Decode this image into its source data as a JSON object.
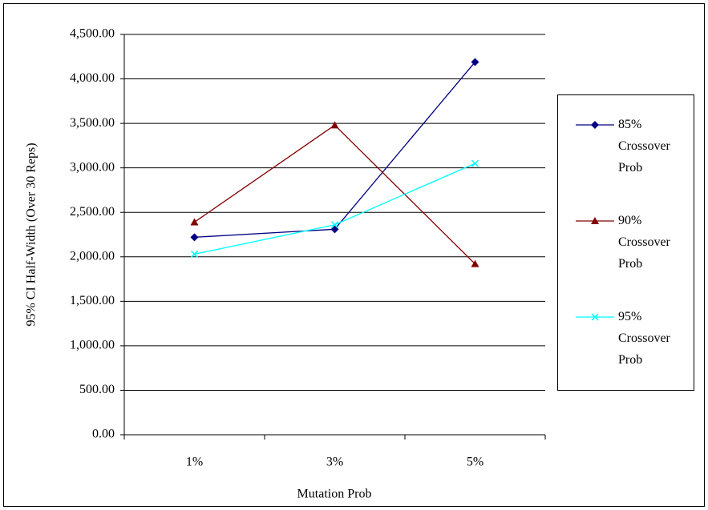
{
  "chart_data": {
    "type": "line",
    "x_label": "Mutation Prob",
    "y_label": "95% CI Half-Width (Over 30 Reps)",
    "categories": [
      "1%",
      "3%",
      "5%"
    ],
    "series": [
      {
        "name": "85% Crossover Prob",
        "color": "#000080",
        "marker": "diamond",
        "values": [
          2220,
          2310,
          4190
        ]
      },
      {
        "name": "90% Crossover Prob",
        "color": "#800000",
        "marker": "triangle",
        "values": [
          2390,
          3480,
          1920
        ]
      },
      {
        "name": "95% Crossover Prob",
        "color": "#00ffff",
        "marker": "x",
        "values": [
          2030,
          2360,
          3050
        ]
      }
    ],
    "ylim": [
      0,
      4500
    ],
    "yticks": [
      {
        "value": 0,
        "label": "0.00"
      },
      {
        "value": 500,
        "label": "500.00"
      },
      {
        "value": 1000,
        "label": "1,000.00"
      },
      {
        "value": 1500,
        "label": "1,500.00"
      },
      {
        "value": 2000,
        "label": "2,000.00"
      },
      {
        "value": 2500,
        "label": "2,500.00"
      },
      {
        "value": 3000,
        "label": "3,000.00"
      },
      {
        "value": 3500,
        "label": "3,500.00"
      },
      {
        "value": 4000,
        "label": "4,000.00"
      },
      {
        "value": 4500,
        "label": "4,500.00"
      }
    ],
    "grid": true,
    "legend": "right"
  }
}
